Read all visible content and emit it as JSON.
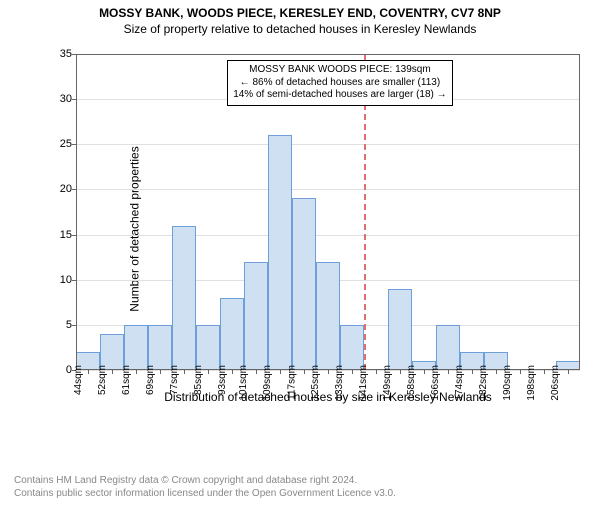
{
  "title": "MOSSY BANK, WOODS PIECE, KERESLEY END, COVENTRY, CV7 8NP",
  "subtitle": "Size of property relative to detached houses in Keresley Newlands",
  "ylabel": "Number of detached properties",
  "xlabel": "Distribution of detached houses by size in Keresley Newlands",
  "chart": {
    "type": "histogram",
    "background_color": "#ffffff",
    "grid_color": "#e0e0e0",
    "axis_color": "#666666",
    "y": {
      "min": 0,
      "max": 35,
      "step": 5
    },
    "bar_fill": "#cfe0f3",
    "bar_stroke": "#6f9fd8",
    "categories": [
      "44sqm",
      "52sqm",
      "61sqm",
      "69sqm",
      "77sqm",
      "85sqm",
      "93sqm",
      "101sqm",
      "109sqm",
      "117sqm",
      "125sqm",
      "133sqm",
      "141sqm",
      "149sqm",
      "158sqm",
      "166sqm",
      "174sqm",
      "182sqm",
      "190sqm",
      "198sqm",
      "206sqm"
    ],
    "values": [
      2,
      4,
      5,
      5,
      16,
      5,
      8,
      12,
      26,
      19,
      12,
      5,
      0,
      9,
      1,
      5,
      2,
      2,
      0,
      0,
      1
    ],
    "reference_line": {
      "index_between": 11.5,
      "color": "#e07070"
    },
    "annotation": {
      "lines": [
        "MOSSY BANK WOODS PIECE: 139sqm",
        "← 86% of detached houses are smaller (113)",
        "14% of semi-detached houses are larger (18) →"
      ],
      "border_color": "#000000",
      "bg_color": "#ffffff"
    }
  },
  "footer": {
    "line1": "Contains HM Land Registry data © Crown copyright and database right 2024.",
    "line2": "Contains public sector information licensed under the Open Government Licence v3.0."
  }
}
